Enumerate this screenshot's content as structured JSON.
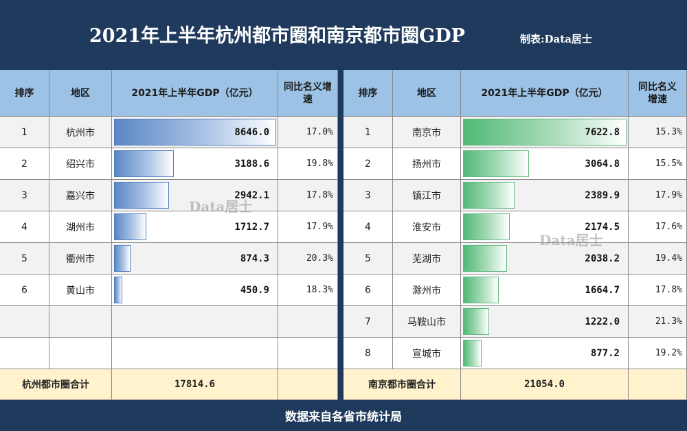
{
  "title": "2021年上半年杭州都市圈和南京都市圈GDP",
  "credit": "制表:Data居士",
  "watermark": "Data居士",
  "footer": "数据来自各省市统计局",
  "headers": {
    "rank": "排序",
    "region": "地区",
    "gdp": "2021年上半年GDP（亿元）",
    "growth": "同比名义增速"
  },
  "colors": {
    "background": "#1f3a5c",
    "header": "#9cc2e5",
    "total": "#fff2cc",
    "bar_left": "#5b86c5",
    "bar_right": "#52b877"
  },
  "chart_data": [
    {
      "type": "table",
      "name": "杭州都市圈",
      "columns": [
        "排序",
        "地区",
        "2021年上半年GDP（亿元）",
        "同比名义增速"
      ],
      "rows": [
        {
          "rank": "1",
          "region": "杭州市",
          "gdp": 8646.0,
          "gdp_text": "8646.0",
          "growth": "17.0%"
        },
        {
          "rank": "2",
          "region": "绍兴市",
          "gdp": 3188.6,
          "gdp_text": "3188.6",
          "growth": "19.8%"
        },
        {
          "rank": "3",
          "region": "嘉兴市",
          "gdp": 2942.1,
          "gdp_text": "2942.1",
          "growth": "17.8%"
        },
        {
          "rank": "4",
          "region": "湖州市",
          "gdp": 1712.7,
          "gdp_text": "1712.7",
          "growth": "17.9%"
        },
        {
          "rank": "5",
          "region": "衢州市",
          "gdp": 874.3,
          "gdp_text": "874.3",
          "growth": "20.3%"
        },
        {
          "rank": "6",
          "region": "黄山市",
          "gdp": 450.9,
          "gdp_text": "450.9",
          "growth": "18.3%"
        }
      ],
      "total_label": "杭州都市圈合计",
      "total_value": "17814.6",
      "bar_max": 8646.0
    },
    {
      "type": "table",
      "name": "南京都市圈",
      "columns": [
        "排序",
        "地区",
        "2021年上半年GDP（亿元）",
        "同比名义增速"
      ],
      "rows": [
        {
          "rank": "1",
          "region": "南京市",
          "gdp": 7622.8,
          "gdp_text": "7622.8",
          "growth": "15.3%"
        },
        {
          "rank": "2",
          "region": "扬州市",
          "gdp": 3064.8,
          "gdp_text": "3064.8",
          "growth": "15.5%"
        },
        {
          "rank": "3",
          "region": "镇江市",
          "gdp": 2389.9,
          "gdp_text": "2389.9",
          "growth": "17.9%"
        },
        {
          "rank": "4",
          "region": "淮安市",
          "gdp": 2174.5,
          "gdp_text": "2174.5",
          "growth": "17.6%"
        },
        {
          "rank": "5",
          "region": "芜湖市",
          "gdp": 2038.2,
          "gdp_text": "2038.2",
          "growth": "19.4%"
        },
        {
          "rank": "6",
          "region": "滁州市",
          "gdp": 1664.7,
          "gdp_text": "1664.7",
          "growth": "17.8%"
        },
        {
          "rank": "7",
          "region": "马鞍山市",
          "gdp": 1222.0,
          "gdp_text": "1222.0",
          "growth": "21.3%"
        },
        {
          "rank": "8",
          "region": "宣城市",
          "gdp": 877.2,
          "gdp_text": "877.2",
          "growth": "19.2%"
        }
      ],
      "total_label": "南京都市圈合计",
      "total_value": "21054.0",
      "bar_max": 7622.8
    }
  ]
}
